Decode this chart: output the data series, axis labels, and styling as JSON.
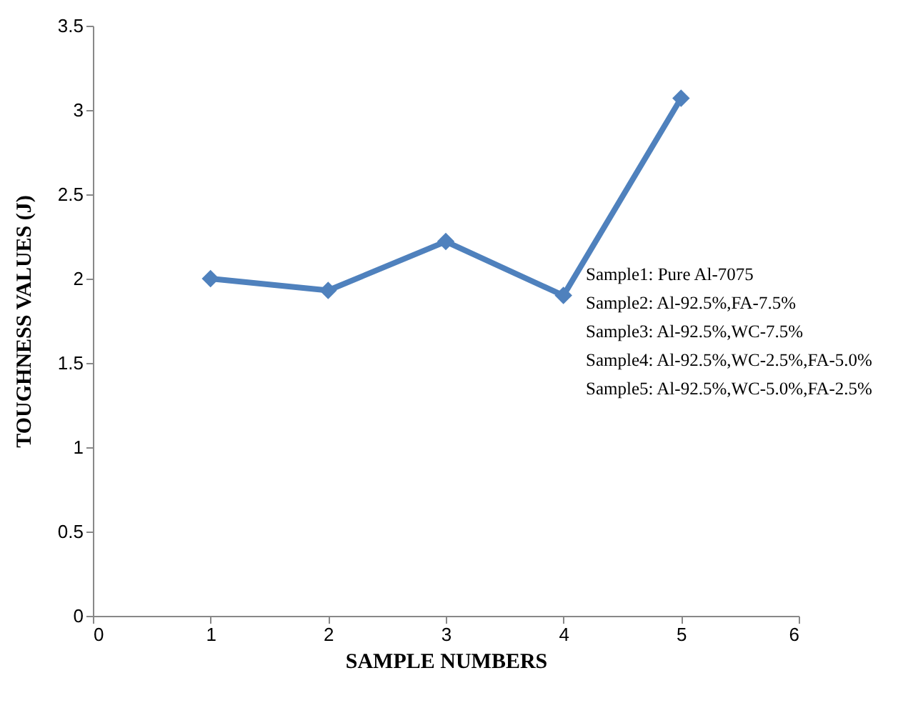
{
  "chart_data": {
    "type": "line",
    "xlabel": "SAMPLE NUMBERS",
    "ylabel": "TOUGHNESS  VALUES  (J)",
    "x": [
      1,
      2,
      3,
      4,
      5
    ],
    "series": [
      {
        "color": "#4f81bd",
        "values": [
          2.0,
          1.93,
          2.22,
          1.9,
          3.07
        ]
      }
    ],
    "xlim": [
      0,
      6
    ],
    "xticks": [
      0,
      1,
      2,
      3,
      4,
      5,
      6
    ],
    "ylim": [
      0,
      3.5
    ],
    "yticks": [
      0,
      0.5,
      1,
      1.5,
      2,
      2.5,
      3,
      3.5
    ],
    "grid": false,
    "marker": "diamond",
    "line_style": "solid",
    "annotations": [
      "Sample1: Pure Al-7075",
      "Sample2: Al-92.5%,FA-7.5%",
      "Sample3: Al-92.5%,WC-7.5%",
      "Sample4: Al-92.5%,WC-2.5%,FA-5.0%",
      "Sample5: Al-92.5%,WC-5.0%,FA-2.5%"
    ]
  }
}
